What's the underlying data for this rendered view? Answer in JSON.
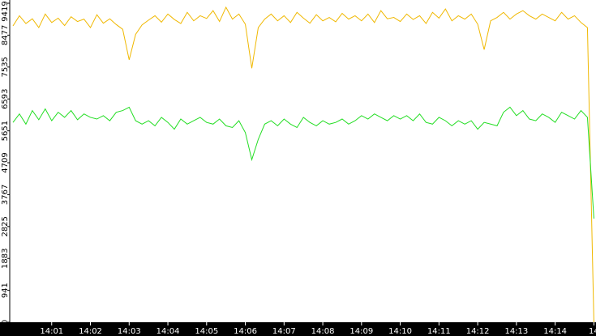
{
  "chart_data": {
    "type": "line",
    "categories": [
      null,
      null,
      null,
      null,
      null,
      null,
      "14:01",
      null,
      null,
      null,
      null,
      null,
      "14:02",
      null,
      null,
      null,
      null,
      null,
      "14:03",
      null,
      null,
      null,
      null,
      null,
      "14:04",
      null,
      null,
      null,
      null,
      null,
      "14:05",
      null,
      null,
      null,
      null,
      null,
      "14:06",
      null,
      null,
      null,
      null,
      null,
      "14:07",
      null,
      null,
      null,
      null,
      null,
      "14:08",
      null,
      null,
      null,
      null,
      null,
      "14:09",
      null,
      null,
      null,
      null,
      null,
      "14:10",
      null,
      null,
      null,
      null,
      null,
      "14:11",
      null,
      null,
      null,
      null,
      null,
      "14:12",
      null,
      null,
      null,
      null,
      null,
      "14:13",
      null,
      null,
      null,
      null,
      null,
      "14:14",
      null,
      null,
      null,
      null,
      null,
      "14"
    ],
    "series": [
      {
        "color": "#f0b800",
        "values": [
          8750,
          9050,
          8820,
          8960,
          8700,
          9100,
          8850,
          8980,
          8760,
          9020,
          8880,
          8950,
          8700,
          9080,
          8830,
          8960,
          8790,
          8650,
          7750,
          8500,
          8780,
          8920,
          9050,
          8860,
          9100,
          8940,
          8820,
          9150,
          8900,
          9050,
          8970,
          9200,
          8880,
          9300,
          8950,
          9100,
          8800,
          7500,
          8700,
          8950,
          9100,
          8900,
          9050,
          8850,
          9150,
          8980,
          8830,
          9080,
          8900,
          9000,
          8870,
          9120,
          8950,
          9050,
          8900,
          9100,
          8850,
          9200,
          8960,
          9000,
          8880,
          9100,
          8940,
          9050,
          8820,
          9150,
          8980,
          9250,
          8900,
          9050,
          8950,
          9100,
          8800,
          8050,
          8900,
          9000,
          9150,
          8950,
          9100,
          9200,
          9050,
          8950,
          9100,
          9000,
          8900,
          9150,
          8950,
          9050,
          8850,
          8700,
          0
        ]
      },
      {
        "color": "#22dd22",
        "values": [
          5900,
          6150,
          5850,
          6250,
          5980,
          6300,
          5950,
          6200,
          6050,
          6250,
          5980,
          6150,
          6050,
          6000,
          6100,
          5950,
          6200,
          6250,
          6350,
          5950,
          5850,
          5950,
          5800,
          6050,
          5900,
          5700,
          6000,
          5850,
          5950,
          6050,
          5900,
          5850,
          6000,
          5800,
          5750,
          5950,
          5600,
          4800,
          5400,
          5850,
          5950,
          5800,
          6000,
          5850,
          5750,
          6050,
          5900,
          5800,
          5950,
          5850,
          5900,
          6000,
          5850,
          5950,
          6100,
          6000,
          6150,
          6050,
          5950,
          6100,
          6000,
          6100,
          5950,
          6150,
          5900,
          5850,
          6050,
          5950,
          5800,
          5950,
          5850,
          5950,
          5700,
          5900,
          5850,
          5800,
          6200,
          6350,
          6100,
          6250,
          6000,
          5950,
          6150,
          6050,
          5900,
          6200,
          6100,
          6000,
          6250,
          6050,
          3060
        ]
      }
    ],
    "ylim": [
      0,
      9419
    ],
    "yticks": [
      0,
      941,
      1883,
      2825,
      3767,
      4709,
      5651,
      6593,
      7535,
      8477,
      9419
    ]
  }
}
